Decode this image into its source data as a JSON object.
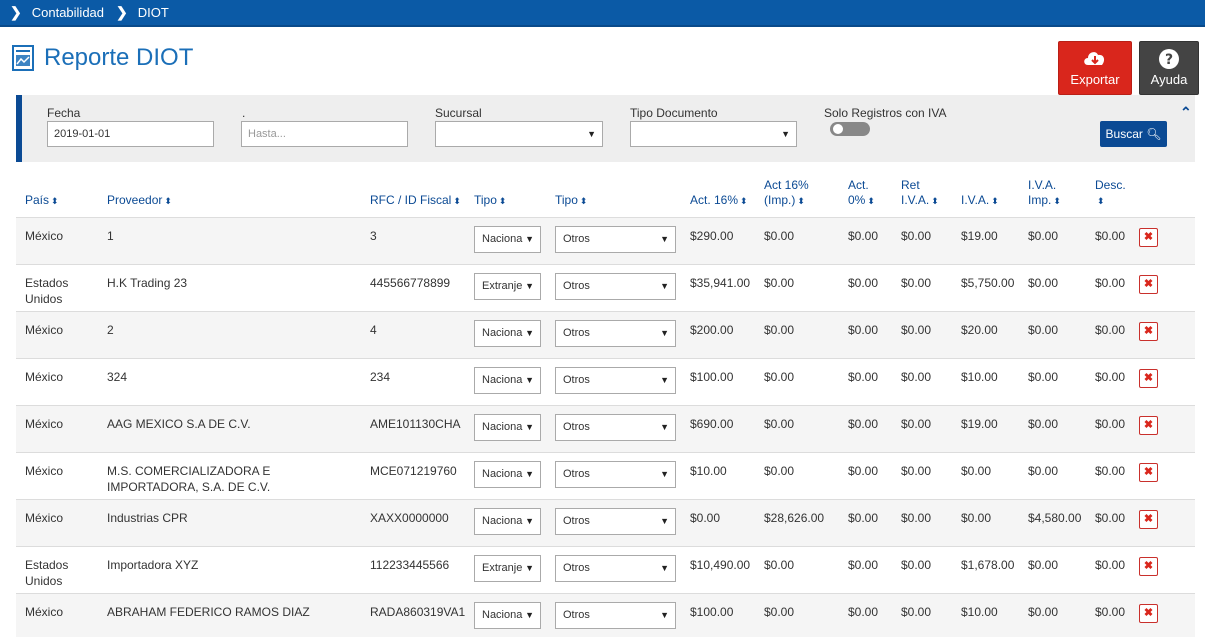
{
  "breadcrumb": {
    "items": [
      "Contabilidad",
      "DIOT"
    ]
  },
  "page": {
    "title": "Reporte DIOT"
  },
  "actions": {
    "export_label": "Exportar",
    "help_label": "Ayuda"
  },
  "colors": {
    "accent": "#0b4a94",
    "topbar": "#0b5aa6",
    "export": "#d9261c",
    "help": "#444444",
    "delete": "#d9261c"
  },
  "filters": {
    "fecha_label": "Fecha",
    "fecha_value": "2019-01-01",
    "hasta_label": ".",
    "hasta_placeholder": "Hasta...",
    "sucursal_label": "Sucursal",
    "tipo_documento_label": "Tipo Documento",
    "solo_iva_label": "Solo Registros con IVA",
    "solo_iva_on": false,
    "search_label": "Buscar"
  },
  "table": {
    "headers": {
      "pais": "País",
      "proveedor": "Proveedor",
      "rfc": "RFC / ID Fiscal",
      "tipo1": "Tipo",
      "tipo2": "Tipo",
      "act16": "Act. 16%",
      "act16imp_1": "Act 16%",
      "act16imp_2": "(Imp.)",
      "act0_1": "Act.",
      "act0_2": "0%",
      "retiva_1": "Ret",
      "retiva_2": "I.V.A.",
      "iva": "I.V.A.",
      "ivaimp_1": "I.V.A.",
      "ivaimp_2": "Imp.",
      "desc": "Desc."
    },
    "rows": [
      {
        "pais": "México",
        "proveedor": "1",
        "rfc": "3",
        "tipo1": "Nacional",
        "tipo2": "Otros",
        "act16": "$290.00",
        "act16imp": "$0.00",
        "act0": "$0.00",
        "retiva": "$0.00",
        "iva": "$19.00",
        "ivaimp": "$0.00",
        "desc": "$0.00"
      },
      {
        "pais": "Estados Unidos",
        "proveedor": "H.K Trading 23",
        "rfc": "445566778899",
        "tipo1": "Extranjero",
        "tipo2": "Otros",
        "act16": "$35,941.00",
        "act16imp": "$0.00",
        "act0": "$0.00",
        "retiva": "$0.00",
        "iva": "$5,750.00",
        "ivaimp": "$0.00",
        "desc": "$0.00"
      },
      {
        "pais": "México",
        "proveedor": "2",
        "rfc": "4",
        "tipo1": "Nacional",
        "tipo2": "Otros",
        "act16": "$200.00",
        "act16imp": "$0.00",
        "act0": "$0.00",
        "retiva": "$0.00",
        "iva": "$20.00",
        "ivaimp": "$0.00",
        "desc": "$0.00"
      },
      {
        "pais": "México",
        "proveedor": "324",
        "rfc": "234",
        "tipo1": "Nacional",
        "tipo2": "Otros",
        "act16": "$100.00",
        "act16imp": "$0.00",
        "act0": "$0.00",
        "retiva": "$0.00",
        "iva": "$10.00",
        "ivaimp": "$0.00",
        "desc": "$0.00"
      },
      {
        "pais": "México",
        "proveedor": "AAG MEXICO S.A DE C.V.",
        "rfc": "AME101130CHA",
        "tipo1": "Nacional",
        "tipo2": "Otros",
        "act16": "$690.00",
        "act16imp": "$0.00",
        "act0": "$0.00",
        "retiva": "$0.00",
        "iva": "$19.00",
        "ivaimp": "$0.00",
        "desc": "$0.00"
      },
      {
        "pais": "México",
        "proveedor": "M.S. COMERCIALIZADORA E IMPORTADORA, S.A. DE C.V.",
        "rfc": "MCE071219760",
        "tipo1": "Nacional",
        "tipo2": "Otros",
        "act16": "$10.00",
        "act16imp": "$0.00",
        "act0": "$0.00",
        "retiva": "$0.00",
        "iva": "$0.00",
        "ivaimp": "$0.00",
        "desc": "$0.00"
      },
      {
        "pais": "México",
        "proveedor": "Industrias CPR",
        "rfc": "XAXX0000000",
        "tipo1": "Nacional",
        "tipo2": "Otros",
        "act16": "$0.00",
        "act16imp": "$28,626.00",
        "act0": "$0.00",
        "retiva": "$0.00",
        "iva": "$0.00",
        "ivaimp": "$4,580.00",
        "desc": "$0.00"
      },
      {
        "pais": "Estados Unidos",
        "proveedor": "Importadora XYZ",
        "rfc": "112233445566",
        "tipo1": "Extranjero",
        "tipo2": "Otros",
        "act16": "$10,490.00",
        "act16imp": "$0.00",
        "act0": "$0.00",
        "retiva": "$0.00",
        "iva": "$1,678.00",
        "ivaimp": "$0.00",
        "desc": "$0.00"
      },
      {
        "pais": "México",
        "proveedor": "ABRAHAM FEDERICO RAMOS DIAZ",
        "rfc": "RADA860319VA1",
        "tipo1": "Nacional",
        "tipo2": "Otros",
        "act16": "$100.00",
        "act16imp": "$0.00",
        "act0": "$0.00",
        "retiva": "$0.00",
        "iva": "$10.00",
        "ivaimp": "$0.00",
        "desc": "$0.00"
      }
    ]
  }
}
